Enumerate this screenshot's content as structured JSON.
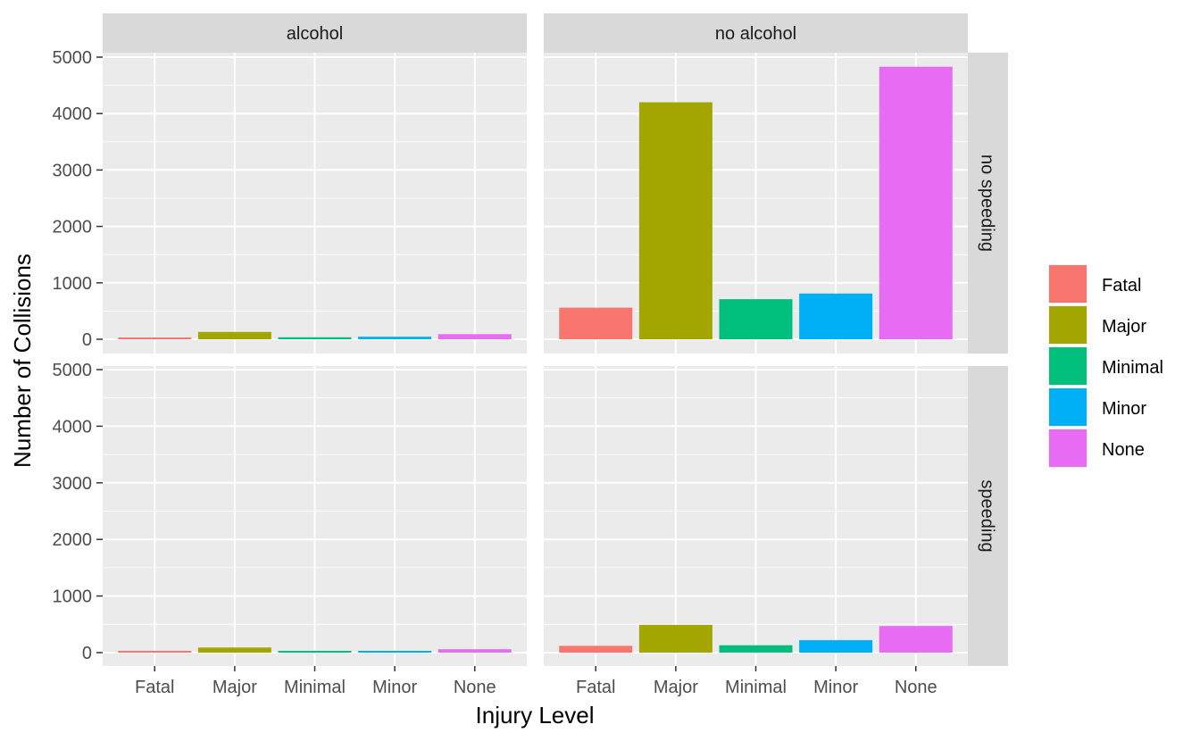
{
  "chart_data": {
    "type": "bar",
    "xlabel": "Injury Level",
    "ylabel": "Number of Collisions",
    "categories": [
      "Fatal",
      "Major",
      "Minimal",
      "Minor",
      "None"
    ],
    "ylim": [
      0,
      5000
    ],
    "yticks": [
      0,
      1000,
      2000,
      3000,
      4000,
      5000
    ],
    "grid": true,
    "legend_position": "right",
    "column_facets": [
      "alcohol",
      "no alcohol"
    ],
    "row_facets": [
      "no speeding",
      "speeding"
    ],
    "colors": {
      "Fatal": "#F8766D",
      "Major": "#A3A500",
      "Minimal": "#00BF7D",
      "Minor": "#00B0F6",
      "None": "#E76BF3"
    },
    "panels": [
      {
        "column": "alcohol",
        "row": "no speeding",
        "values": [
          20,
          130,
          35,
          45,
          90
        ]
      },
      {
        "column": "no alcohol",
        "row": "no speeding",
        "values": [
          560,
          4200,
          710,
          810,
          4830
        ]
      },
      {
        "column": "alcohol",
        "row": "speeding",
        "values": [
          25,
          90,
          30,
          30,
          60
        ]
      },
      {
        "column": "no alcohol",
        "row": "speeding",
        "values": [
          120,
          490,
          130,
          220,
          470
        ]
      }
    ],
    "legend": [
      "Fatal",
      "Major",
      "Minimal",
      "Minor",
      "None"
    ]
  }
}
